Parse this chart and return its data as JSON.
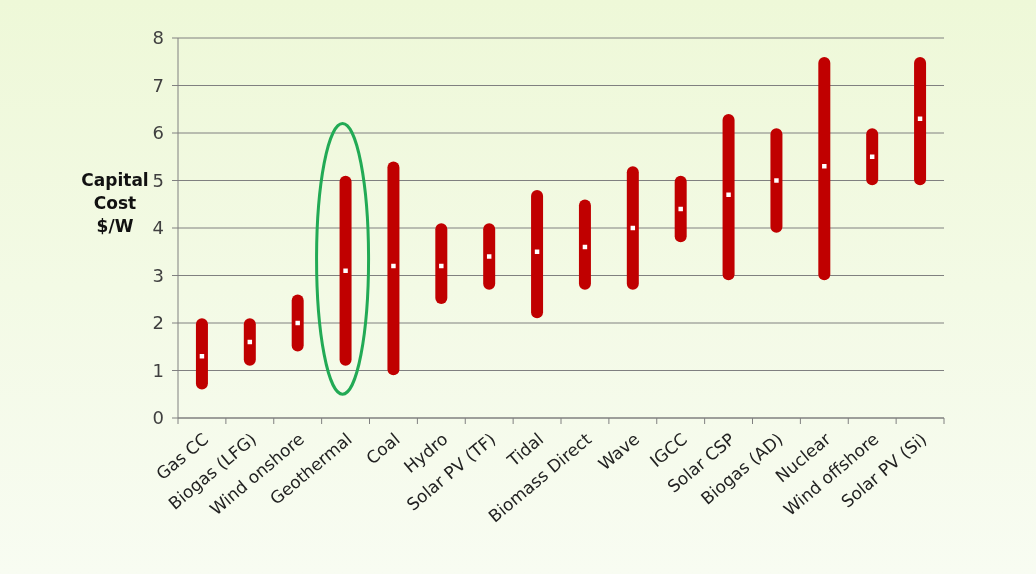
{
  "chart_data": {
    "type": "bar",
    "ylabel": "Capital Cost $/W",
    "categories": [
      "Gas CC",
      "Biogas (LFG)",
      "Wind onshore",
      "Geothermal",
      "Coal",
      "Hydro",
      "Solar PV (TF)",
      "Tidal",
      "Biomass Direct",
      "Wave",
      "IGCC",
      "Solar CSP",
      "Biogas (AD)",
      "Nuclear",
      "Wind offshore",
      "Solar PV (Si)"
    ],
    "series": [
      {
        "color": "#c00000",
        "base": [
          0.6,
          1.1,
          1.4,
          1.1,
          0.9,
          2.4,
          2.7,
          2.1,
          2.7,
          2.7,
          3.7,
          2.9,
          3.9,
          2.9,
          4.9,
          4.9
        ],
        "values": [
          1.5,
          1.0,
          1.2,
          4.0,
          4.5,
          1.7,
          1.4,
          2.7,
          1.9,
          2.6,
          1.4,
          3.5,
          2.2,
          4.7,
          1.2,
          2.7
        ]
      },
      {
        "type": "scatter",
        "color": "#ffffff",
        "marker": "square",
        "x": [
          "Gas CC",
          "Biogas (LFG)",
          "Wind onshore",
          "Geothermal",
          "Coal",
          "Hydro",
          "Solar PV (TF)",
          "Tidal",
          "Biomass Direct",
          "Wave",
          "IGCC",
          "Solar CSP",
          "Biogas (AD)",
          "Nuclear",
          "Wind offshore",
          "Solar PV (Si)"
        ],
        "values": [
          1.3,
          1.6,
          2.0,
          3.1,
          3.2,
          3.2,
          3.4,
          3.5,
          3.6,
          4.0,
          4.4,
          4.7,
          5.0,
          5.3,
          5.5,
          6.3
        ]
      }
    ],
    "ylim": [
      0,
      8
    ],
    "yticks": [
      0,
      1,
      2,
      3,
      4,
      5,
      6,
      7,
      8
    ],
    "grid": "y"
  }
}
